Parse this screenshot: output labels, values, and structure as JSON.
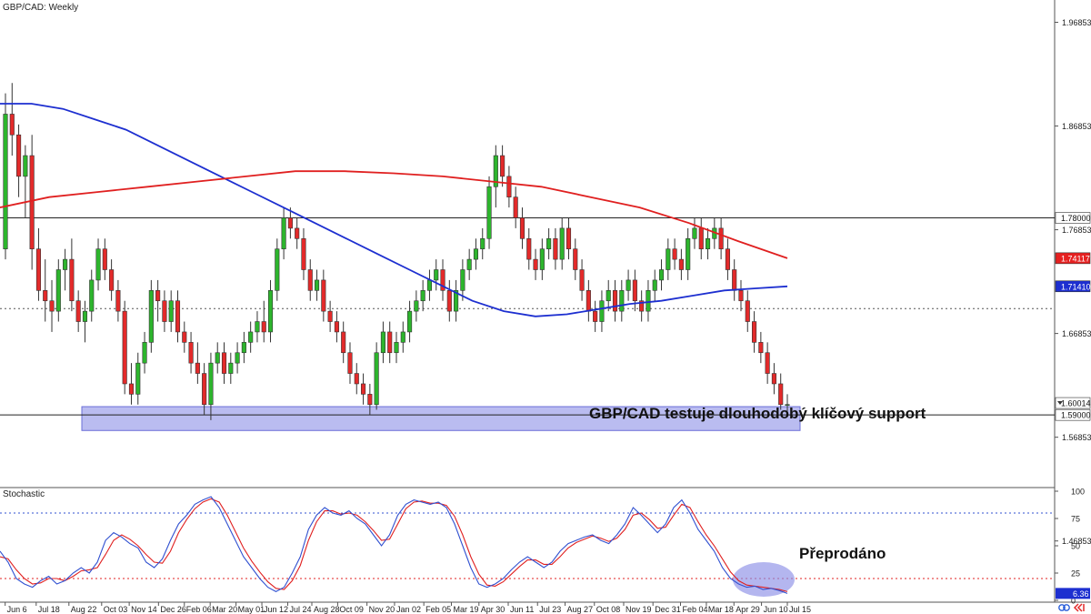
{
  "chart_title": "GBP/CAD: Weekly",
  "annotation_main": "GBP/CAD testuje dlouhodobý klíčový support",
  "annotation_osc": "Přeprodáno",
  "colors": {
    "bull": "#2db52d",
    "bear": "#e32a2a",
    "sma_fast": "#1d2fd0",
    "sma_slow": "#e02020",
    "zone": "#8c8fe6",
    "hline": "#222222",
    "stoch_k": "#3050d0",
    "stoch_d": "#e02020",
    "ob_line": "#3050d0",
    "os_line": "#e02020",
    "price_tag_red": "#e62020",
    "price_tag_blue": "#1d2fd0",
    "os_highlight": "#8c8fe6"
  },
  "chart_data": [
    {
      "type": "candlestick",
      "title": "GBP/CAD: Weekly",
      "ylim": [
        1.52,
        1.99
      ],
      "y_ticks": [
        "1.96853",
        "1.86853",
        "1.76853",
        "1.66853",
        "1.56853",
        "1.46853"
      ],
      "x_ticks": [
        "Jun 6",
        "Jul 18",
        "Aug 22",
        "Oct 03",
        "Nov 14",
        "Dec 26",
        "Feb 06",
        "Mar 20",
        "May 01",
        "Jun 12",
        "Jul 24",
        "Aug 28",
        "Oct 09",
        "Nov 20",
        "Jan 02",
        "Feb 05",
        "Mar 19",
        "Apr 30",
        "Jun 11",
        "Jul 23",
        "Aug 27",
        "Oct 08",
        "Nov 19",
        "Dec 31",
        "Feb 04",
        "Mar 18",
        "Apr 29",
        "Jun 10",
        "Jul 15"
      ],
      "candles": [
        [
          1.75,
          1.9,
          1.74,
          1.88
        ],
        [
          1.88,
          1.91,
          1.84,
          1.86
        ],
        [
          1.86,
          1.87,
          1.8,
          1.82
        ],
        [
          1.82,
          1.85,
          1.78,
          1.84
        ],
        [
          1.84,
          1.86,
          1.73,
          1.75
        ],
        [
          1.75,
          1.77,
          1.7,
          1.71
        ],
        [
          1.71,
          1.74,
          1.68,
          1.7
        ],
        [
          1.7,
          1.72,
          1.67,
          1.69
        ],
        [
          1.69,
          1.74,
          1.68,
          1.73
        ],
        [
          1.73,
          1.75,
          1.71,
          1.74
        ],
        [
          1.74,
          1.76,
          1.69,
          1.7
        ],
        [
          1.7,
          1.71,
          1.67,
          1.68
        ],
        [
          1.68,
          1.7,
          1.66,
          1.69
        ],
        [
          1.69,
          1.73,
          1.68,
          1.72
        ],
        [
          1.72,
          1.76,
          1.71,
          1.75
        ],
        [
          1.75,
          1.76,
          1.72,
          1.73
        ],
        [
          1.73,
          1.74,
          1.7,
          1.71
        ],
        [
          1.71,
          1.72,
          1.68,
          1.69
        ],
        [
          1.69,
          1.7,
          1.61,
          1.62
        ],
        [
          1.62,
          1.64,
          1.6,
          1.61
        ],
        [
          1.61,
          1.65,
          1.6,
          1.64
        ],
        [
          1.64,
          1.67,
          1.63,
          1.66
        ],
        [
          1.66,
          1.72,
          1.65,
          1.71
        ],
        [
          1.71,
          1.72,
          1.68,
          1.7
        ],
        [
          1.7,
          1.71,
          1.67,
          1.68
        ],
        [
          1.68,
          1.71,
          1.67,
          1.7
        ],
        [
          1.7,
          1.71,
          1.66,
          1.67
        ],
        [
          1.67,
          1.68,
          1.65,
          1.66
        ],
        [
          1.66,
          1.67,
          1.63,
          1.64
        ],
        [
          1.64,
          1.66,
          1.62,
          1.63
        ],
        [
          1.63,
          1.64,
          1.59,
          1.6
        ],
        [
          1.6,
          1.65,
          1.585,
          1.64
        ],
        [
          1.64,
          1.66,
          1.63,
          1.65
        ],
        [
          1.65,
          1.66,
          1.62,
          1.63
        ],
        [
          1.63,
          1.65,
          1.62,
          1.64
        ],
        [
          1.64,
          1.66,
          1.63,
          1.65
        ],
        [
          1.65,
          1.67,
          1.64,
          1.66
        ],
        [
          1.66,
          1.68,
          1.65,
          1.67
        ],
        [
          1.67,
          1.69,
          1.66,
          1.68
        ],
        [
          1.68,
          1.7,
          1.66,
          1.67
        ],
        [
          1.67,
          1.72,
          1.66,
          1.71
        ],
        [
          1.71,
          1.76,
          1.7,
          1.75
        ],
        [
          1.75,
          1.79,
          1.74,
          1.78
        ],
        [
          1.78,
          1.79,
          1.76,
          1.77
        ],
        [
          1.77,
          1.78,
          1.75,
          1.76
        ],
        [
          1.76,
          1.77,
          1.72,
          1.73
        ],
        [
          1.73,
          1.74,
          1.7,
          1.71
        ],
        [
          1.71,
          1.73,
          1.7,
          1.72
        ],
        [
          1.72,
          1.73,
          1.68,
          1.69
        ],
        [
          1.69,
          1.7,
          1.67,
          1.68
        ],
        [
          1.68,
          1.69,
          1.66,
          1.67
        ],
        [
          1.67,
          1.68,
          1.64,
          1.65
        ],
        [
          1.65,
          1.66,
          1.62,
          1.63
        ],
        [
          1.63,
          1.64,
          1.61,
          1.62
        ],
        [
          1.62,
          1.63,
          1.6,
          1.61
        ],
        [
          1.61,
          1.62,
          1.59,
          1.6
        ],
        [
          1.6,
          1.66,
          1.595,
          1.65
        ],
        [
          1.65,
          1.68,
          1.64,
          1.67
        ],
        [
          1.67,
          1.68,
          1.64,
          1.65
        ],
        [
          1.65,
          1.67,
          1.64,
          1.66
        ],
        [
          1.66,
          1.68,
          1.65,
          1.67
        ],
        [
          1.67,
          1.7,
          1.66,
          1.69
        ],
        [
          1.69,
          1.71,
          1.68,
          1.7
        ],
        [
          1.7,
          1.72,
          1.69,
          1.71
        ],
        [
          1.71,
          1.73,
          1.7,
          1.72
        ],
        [
          1.72,
          1.74,
          1.71,
          1.73
        ],
        [
          1.73,
          1.74,
          1.7,
          1.71
        ],
        [
          1.71,
          1.72,
          1.68,
          1.69
        ],
        [
          1.69,
          1.72,
          1.68,
          1.71
        ],
        [
          1.71,
          1.74,
          1.7,
          1.73
        ],
        [
          1.73,
          1.75,
          1.72,
          1.74
        ],
        [
          1.74,
          1.76,
          1.73,
          1.75
        ],
        [
          1.75,
          1.77,
          1.74,
          1.76
        ],
        [
          1.76,
          1.82,
          1.75,
          1.81
        ],
        [
          1.81,
          1.85,
          1.79,
          1.84
        ],
        [
          1.84,
          1.85,
          1.81,
          1.82
        ],
        [
          1.82,
          1.83,
          1.79,
          1.8
        ],
        [
          1.8,
          1.81,
          1.77,
          1.78
        ],
        [
          1.78,
          1.79,
          1.75,
          1.76
        ],
        [
          1.76,
          1.77,
          1.73,
          1.74
        ],
        [
          1.74,
          1.75,
          1.72,
          1.73
        ],
        [
          1.73,
          1.76,
          1.72,
          1.75
        ],
        [
          1.75,
          1.77,
          1.74,
          1.76
        ],
        [
          1.76,
          1.77,
          1.73,
          1.74
        ],
        [
          1.74,
          1.78,
          1.73,
          1.77
        ],
        [
          1.77,
          1.78,
          1.74,
          1.75
        ],
        [
          1.75,
          1.76,
          1.72,
          1.73
        ],
        [
          1.73,
          1.74,
          1.7,
          1.71
        ],
        [
          1.71,
          1.72,
          1.68,
          1.69
        ],
        [
          1.69,
          1.7,
          1.67,
          1.68
        ],
        [
          1.68,
          1.71,
          1.67,
          1.7
        ],
        [
          1.7,
          1.72,
          1.69,
          1.71
        ],
        [
          1.71,
          1.72,
          1.68,
          1.69
        ],
        [
          1.69,
          1.72,
          1.68,
          1.71
        ],
        [
          1.71,
          1.73,
          1.7,
          1.72
        ],
        [
          1.72,
          1.73,
          1.69,
          1.7
        ],
        [
          1.7,
          1.71,
          1.68,
          1.69
        ],
        [
          1.69,
          1.72,
          1.68,
          1.71
        ],
        [
          1.71,
          1.73,
          1.7,
          1.72
        ],
        [
          1.72,
          1.74,
          1.71,
          1.73
        ],
        [
          1.73,
          1.76,
          1.72,
          1.75
        ],
        [
          1.75,
          1.76,
          1.73,
          1.74
        ],
        [
          1.74,
          1.75,
          1.72,
          1.73
        ],
        [
          1.73,
          1.77,
          1.72,
          1.76
        ],
        [
          1.76,
          1.78,
          1.75,
          1.77
        ],
        [
          1.77,
          1.78,
          1.74,
          1.75
        ],
        [
          1.75,
          1.77,
          1.74,
          1.76
        ],
        [
          1.76,
          1.78,
          1.75,
          1.77
        ],
        [
          1.77,
          1.78,
          1.74,
          1.75
        ],
        [
          1.75,
          1.76,
          1.72,
          1.73
        ],
        [
          1.73,
          1.74,
          1.7,
          1.71
        ],
        [
          1.71,
          1.72,
          1.69,
          1.7
        ],
        [
          1.7,
          1.71,
          1.67,
          1.68
        ],
        [
          1.68,
          1.69,
          1.65,
          1.66
        ],
        [
          1.66,
          1.67,
          1.64,
          1.65
        ],
        [
          1.65,
          1.66,
          1.62,
          1.63
        ],
        [
          1.63,
          1.64,
          1.61,
          1.62
        ],
        [
          1.62,
          1.63,
          1.595,
          1.6
        ],
        [
          1.6,
          1.61,
          1.59,
          1.6001
        ]
      ],
      "sma_fast": [
        1.89,
        1.89,
        1.885,
        1.875,
        1.865,
        1.85,
        1.835,
        1.82,
        1.805,
        1.79,
        1.775,
        1.76,
        1.745,
        1.73,
        1.715,
        1.7,
        1.69,
        1.685,
        1.687,
        1.692,
        1.697,
        1.7,
        1.705,
        1.71,
        1.712,
        1.714
      ],
      "sma_slow": [
        1.79,
        1.8,
        1.805,
        1.81,
        1.815,
        1.82,
        1.825,
        1.825,
        1.823,
        1.82,
        1.815,
        1.81,
        1.8,
        1.79,
        1.775,
        1.7575,
        1.7411
      ],
      "sma_fast_label": "1.71410",
      "sma_slow_label": "1.74117",
      "resistance_label": "1.78000",
      "support_label": "1.59000",
      "current_price_label": "1.60014",
      "resistance": 1.78,
      "support": 1.59,
      "mid_level": 1.6925,
      "zone": [
        1.575,
        1.598
      ]
    },
    {
      "type": "line",
      "title": "Stochastic",
      "ylim": [
        0,
        100
      ],
      "y_ticks": [
        "100",
        "75",
        "50",
        "25",
        "0"
      ],
      "overbought": 80,
      "oversold": 20,
      "current_value_label": "6.36",
      "k_values": [
        45,
        35,
        20,
        15,
        12,
        18,
        22,
        15,
        18,
        25,
        30,
        25,
        35,
        55,
        62,
        58,
        52,
        48,
        35,
        30,
        38,
        55,
        70,
        78,
        88,
        92,
        95,
        85,
        70,
        55,
        40,
        30,
        20,
        12,
        8,
        12,
        25,
        40,
        65,
        78,
        85,
        80,
        78,
        82,
        75,
        70,
        60,
        50,
        60,
        78,
        88,
        92,
        90,
        88,
        90,
        85,
        70,
        50,
        30,
        15,
        12,
        15,
        20,
        28,
        35,
        40,
        35,
        30,
        35,
        45,
        52,
        55,
        58,
        60,
        55,
        52,
        60,
        70,
        85,
        78,
        70,
        62,
        70,
        85,
        92,
        80,
        65,
        55,
        45,
        30,
        20,
        15,
        12,
        13,
        10,
        11,
        9,
        6.36
      ],
      "d_values": [
        40,
        38,
        28,
        20,
        15,
        16,
        20,
        20,
        18,
        22,
        27,
        28,
        30,
        42,
        55,
        60,
        56,
        50,
        42,
        35,
        34,
        45,
        62,
        74,
        84,
        90,
        93,
        90,
        78,
        63,
        48,
        36,
        26,
        17,
        11,
        10,
        18,
        32,
        55,
        72,
        82,
        82,
        79,
        80,
        78,
        72,
        64,
        55,
        56,
        70,
        84,
        90,
        91,
        89,
        89,
        87,
        77,
        60,
        40,
        24,
        14,
        13,
        17,
        24,
        31,
        37,
        37,
        33,
        33,
        40,
        48,
        53,
        56,
        59,
        57,
        54,
        57,
        65,
        78,
        80,
        74,
        66,
        67,
        78,
        88,
        85,
        72,
        60,
        50,
        38,
        26,
        18,
        14,
        13,
        12,
        11,
        10,
        8
      ]
    }
  ]
}
